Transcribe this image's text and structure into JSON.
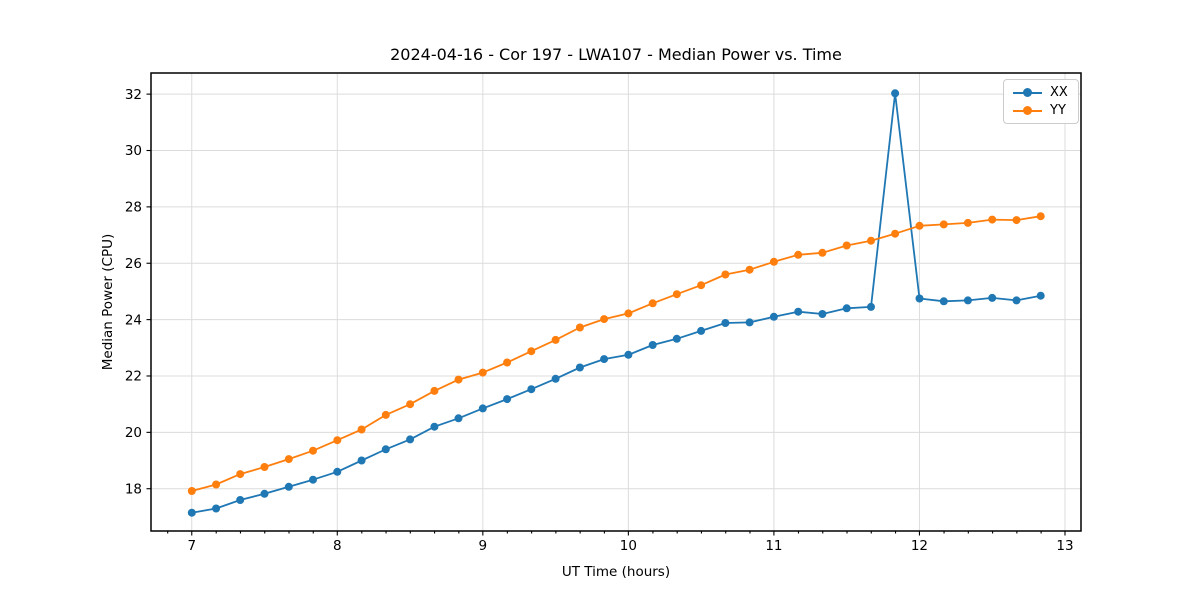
{
  "chart_data": {
    "type": "line",
    "title": "2024-04-16 - Cor 197 - LWA107 - Median Power vs. Time",
    "xlabel": "UT Time (hours)",
    "ylabel": "Median Power (CPU)",
    "xlim": [
      6.72,
      13.11
    ],
    "ylim": [
      16.5,
      32.75
    ],
    "xticks": [
      7,
      8,
      9,
      10,
      11,
      12,
      13
    ],
    "yticks": [
      18,
      20,
      22,
      24,
      26,
      28,
      30,
      32
    ],
    "x_minor_step": 0.1667,
    "grid": true,
    "legend_position": "upper right",
    "marker": "circle",
    "x": [
      7.0,
      7.167,
      7.333,
      7.5,
      7.667,
      7.833,
      8.0,
      8.167,
      8.333,
      8.5,
      8.667,
      8.833,
      9.0,
      9.167,
      9.333,
      9.5,
      9.667,
      9.833,
      10.0,
      10.167,
      10.333,
      10.5,
      10.667,
      10.833,
      11.0,
      11.167,
      11.333,
      11.5,
      11.667,
      11.833,
      12.0,
      12.167,
      12.333,
      12.5,
      12.667,
      12.833
    ],
    "series": [
      {
        "name": "XX",
        "color": "#1f77b4",
        "values": [
          17.15,
          17.3,
          17.6,
          17.82,
          18.07,
          18.32,
          18.6,
          19.0,
          19.4,
          19.75,
          20.2,
          20.5,
          20.85,
          21.18,
          21.53,
          21.9,
          22.3,
          22.6,
          22.75,
          23.1,
          23.32,
          23.6,
          23.88,
          23.9,
          24.1,
          24.28,
          24.2,
          24.4,
          24.45,
          32.03,
          24.75,
          24.65,
          24.68,
          24.77,
          24.68,
          24.85
        ]
      },
      {
        "name": "YY",
        "color": "#ff7f0e",
        "values": [
          17.92,
          18.15,
          18.52,
          18.77,
          19.05,
          19.35,
          19.72,
          20.1,
          20.62,
          21.0,
          21.47,
          21.87,
          22.12,
          22.48,
          22.88,
          23.28,
          23.72,
          24.02,
          24.22,
          24.58,
          24.9,
          25.22,
          25.6,
          25.77,
          26.05,
          26.3,
          26.37,
          26.63,
          26.8,
          27.05,
          27.33,
          27.38,
          27.43,
          27.55,
          27.53,
          27.67
        ]
      }
    ]
  }
}
